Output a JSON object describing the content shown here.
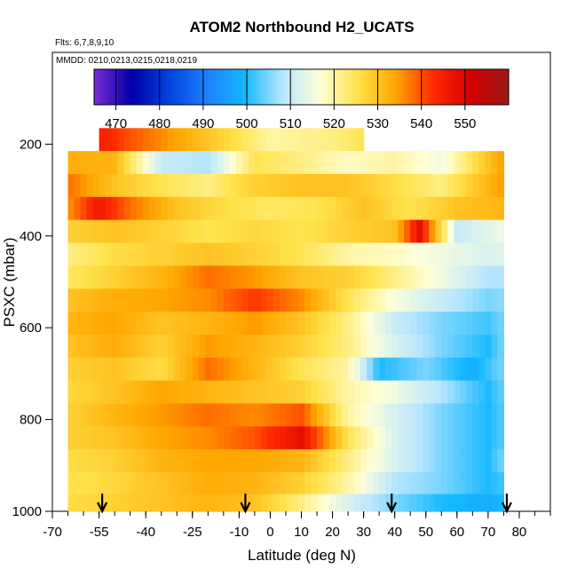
{
  "chart_data": {
    "type": "heatmap",
    "title": "ATOM2 Northbound H2_UCATS",
    "flights_note": "Flts: 6,7,8,9,10",
    "dates_note": "MMDD: 0210,0213,0215,0218,0219",
    "xlabel": "Latitude (deg N)",
    "ylabel": "PSXC (mbar)",
    "xlim": [
      -70,
      90
    ],
    "ylim": [
      1000,
      0
    ],
    "x_ticks": [
      -70,
      -55,
      -40,
      -25,
      -10,
      0,
      10,
      20,
      30,
      40,
      50,
      60,
      70,
      80
    ],
    "y_ticks": [
      200,
      400,
      600,
      800,
      1000
    ],
    "colorbar": {
      "min": 465,
      "max": 560,
      "ticks": [
        470,
        480,
        490,
        500,
        510,
        520,
        530,
        540,
        550
      ],
      "colors": [
        "#7b2bd6",
        "#0000a8",
        "#0044dd",
        "#1f7fff",
        "#14b8ff",
        "#b8e6ff",
        "#ffffd8",
        "#ffe24a",
        "#ffa600",
        "#ff2a00",
        "#d40000",
        "#9a1a1a"
      ]
    },
    "arrows_latitude": [
      -54,
      -8,
      39,
      76
    ],
    "levels": [
      {
        "p": 190,
        "lat": [
          -55,
          -45,
          -25,
          -10,
          0,
          20,
          30
        ],
        "v": [
          545,
          540,
          532,
          525,
          520,
          522,
          525
        ]
      },
      {
        "p": 240,
        "lat": [
          -65,
          -50,
          -35,
          -20,
          -5,
          10,
          25,
          40,
          55,
          70,
          75
        ],
        "v": [
          533,
          532,
          510,
          508,
          525,
          522,
          518,
          520,
          515,
          530,
          535
        ]
      },
      {
        "p": 290,
        "lat": [
          -65,
          -50,
          -35,
          -20,
          -5,
          10,
          25,
          40,
          55,
          70,
          75
        ],
        "v": [
          538,
          530,
          525,
          522,
          528,
          530,
          530,
          526,
          522,
          532,
          535
        ]
      },
      {
        "p": 340,
        "lat": [
          -65,
          -55,
          -45,
          -30,
          -15,
          0,
          15,
          30,
          45,
          60,
          75
        ],
        "v": [
          535,
          546,
          538,
          530,
          526,
          524,
          525,
          530,
          525,
          530,
          532
        ]
      },
      {
        "p": 390,
        "lat": [
          -65,
          -50,
          -35,
          -20,
          -5,
          10,
          25,
          40,
          48,
          60,
          75
        ],
        "v": [
          528,
          530,
          528,
          525,
          527,
          525,
          528,
          530,
          548,
          510,
          515
        ]
      },
      {
        "p": 440,
        "lat": [
          -65,
          -50,
          -35,
          -20,
          -5,
          10,
          25,
          40,
          55,
          70,
          75
        ],
        "v": [
          522,
          526,
          528,
          530,
          528,
          525,
          520,
          518,
          515,
          512,
          513
        ]
      },
      {
        "p": 490,
        "lat": [
          -65,
          -50,
          -35,
          -20,
          -5,
          10,
          25,
          40,
          55,
          70,
          75
        ],
        "v": [
          524,
          528,
          532,
          538,
          535,
          530,
          528,
          522,
          515,
          508,
          508
        ]
      },
      {
        "p": 540,
        "lat": [
          -65,
          -50,
          -35,
          -20,
          -5,
          10,
          25,
          40,
          55,
          70,
          75
        ],
        "v": [
          530,
          533,
          534,
          536,
          542,
          536,
          525,
          516,
          510,
          505,
          506
        ]
      },
      {
        "p": 590,
        "lat": [
          -65,
          -50,
          -35,
          -20,
          -5,
          10,
          25,
          40,
          55,
          70,
          75
        ],
        "v": [
          532,
          534,
          530,
          532,
          535,
          530,
          522,
          510,
          505,
          502,
          505
        ]
      },
      {
        "p": 640,
        "lat": [
          -65,
          -50,
          -35,
          -20,
          -5,
          10,
          25,
          40,
          55,
          70,
          75
        ],
        "v": [
          530,
          533,
          528,
          535,
          532,
          528,
          522,
          512,
          505,
          500,
          505
        ]
      },
      {
        "p": 690,
        "lat": [
          -65,
          -50,
          -35,
          -20,
          -5,
          10,
          25,
          35,
          50,
          65,
          75
        ],
        "v": [
          528,
          530,
          526,
          538,
          532,
          525,
          520,
          500,
          505,
          498,
          505
        ]
      },
      {
        "p": 740,
        "lat": [
          -65,
          -50,
          -35,
          -20,
          -5,
          10,
          25,
          40,
          55,
          70,
          75
        ],
        "v": [
          527,
          530,
          534,
          532,
          530,
          528,
          520,
          515,
          508,
          500,
          504
        ]
      },
      {
        "p": 790,
        "lat": [
          -65,
          -50,
          -35,
          -20,
          -5,
          10,
          25,
          40,
          55,
          70,
          75
        ],
        "v": [
          528,
          532,
          535,
          538,
          536,
          540,
          520,
          512,
          505,
          500,
          503
        ]
      },
      {
        "p": 840,
        "lat": [
          -65,
          -50,
          -35,
          -20,
          -5,
          10,
          25,
          40,
          55,
          70,
          75
        ],
        "v": [
          528,
          530,
          534,
          536,
          540,
          548,
          525,
          512,
          505,
          500,
          503
        ]
      },
      {
        "p": 890,
        "lat": [
          -65,
          -50,
          -35,
          -20,
          -5,
          10,
          25,
          40,
          55,
          70,
          75
        ],
        "v": [
          526,
          528,
          532,
          534,
          534,
          532,
          522,
          512,
          505,
          500,
          505
        ]
      },
      {
        "p": 940,
        "lat": [
          -65,
          -50,
          -35,
          -20,
          -5,
          10,
          25,
          40,
          55,
          70,
          75
        ],
        "v": [
          525,
          527,
          530,
          533,
          532,
          528,
          520,
          508,
          505,
          500,
          502
        ]
      },
      {
        "p": 985,
        "lat": [
          -65,
          -50,
          -35,
          -20,
          -5,
          10,
          25,
          40,
          55,
          70,
          75
        ],
        "v": [
          526,
          528,
          530,
          532,
          530,
          522,
          512,
          505,
          500,
          498,
          500
        ]
      }
    ]
  }
}
